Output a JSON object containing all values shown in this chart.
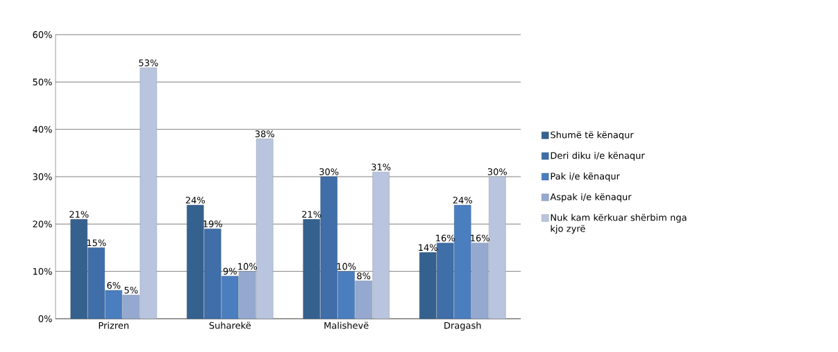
{
  "chart_data": {
    "type": "bar",
    "categories": [
      "Prizren",
      "Suharekë",
      "Malishevë",
      "Dragash"
    ],
    "series": [
      {
        "name": "Shumë të kënaqur",
        "color": "#35618f",
        "values": [
          21,
          24,
          21,
          14
        ],
        "value_labels": [
          "21%",
          "24%",
          "21%",
          "14%"
        ]
      },
      {
        "name": "Deri diku i/e kënaqur",
        "color": "#3f6ea8",
        "values": [
          15,
          19,
          30,
          16
        ],
        "value_labels": [
          "15%",
          "19%",
          "30%",
          "16%"
        ]
      },
      {
        "name": "Pak i/e kënaqur",
        "color": "#4a7ebf",
        "values": [
          6,
          9,
          10,
          24
        ],
        "value_labels": [
          "6%",
          "9%",
          "10%",
          "24%"
        ]
      },
      {
        "name": "Aspak i/e kënaqur",
        "color": "#95a9d0",
        "values": [
          5,
          10,
          8,
          16
        ],
        "value_labels": [
          "5%",
          "10%",
          "8%",
          "16%"
        ]
      },
      {
        "name": "Nuk kam kërkuar shërbim nga kjo zyrë",
        "color": "#b9c5de",
        "values": [
          53,
          38,
          31,
          30
        ],
        "value_labels": [
          "53%",
          "38%",
          "31%",
          "30%"
        ]
      }
    ],
    "ylim": [
      0,
      60
    ],
    "yticks": [
      {
        "value": 0,
        "label": "0%"
      },
      {
        "value": 10,
        "label": "10%"
      },
      {
        "value": 20,
        "label": "20%"
      },
      {
        "value": 30,
        "label": "30%"
      },
      {
        "value": 40,
        "label": "40%"
      },
      {
        "value": 50,
        "label": "50%"
      },
      {
        "value": 60,
        "label": "60%"
      }
    ],
    "grid": "y",
    "legend": "right"
  }
}
